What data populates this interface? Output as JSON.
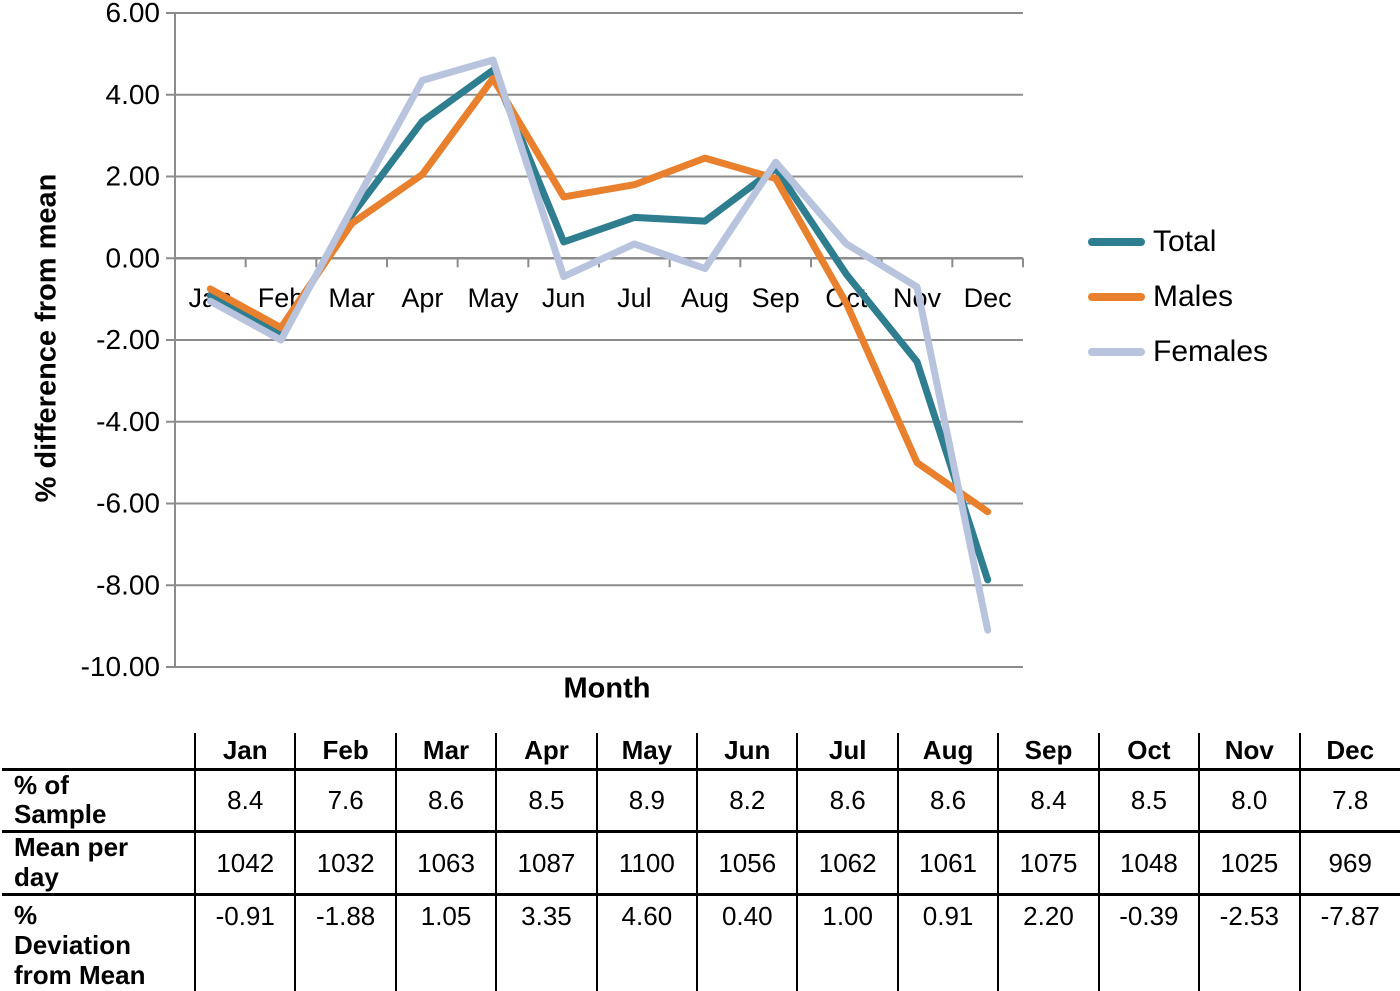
{
  "chart": {
    "y_axis_title": "% difference from mean",
    "x_axis_title": "Month",
    "y_tick_labels": [
      "6.00",
      "4.00",
      "2.00",
      "0.00",
      "-2.00",
      "-4.00",
      "-6.00",
      "-8.00",
      "-10.00"
    ]
  },
  "chart_data": {
    "type": "line",
    "title": "",
    "xlabel": "Month",
    "ylabel": "% difference from mean",
    "categories": [
      "Jan",
      "Feb",
      "Mar",
      "Apr",
      "May",
      "Jun",
      "Jul",
      "Aug",
      "Sep",
      "Oct",
      "Nov",
      "Dec"
    ],
    "series": [
      {
        "name": "Total",
        "color": "#2E7E90",
        "values": [
          -0.91,
          -1.88,
          1.05,
          3.35,
          4.6,
          0.4,
          1.0,
          0.91,
          2.2,
          -0.39,
          -2.53,
          -7.87
        ]
      },
      {
        "name": "Males",
        "color": "#E8802E",
        "values": [
          -0.75,
          -1.7,
          0.85,
          2.05,
          4.4,
          1.5,
          1.8,
          2.45,
          1.95,
          -1.1,
          -5.0,
          -6.2
        ]
      },
      {
        "name": "Females",
        "color": "#B8C3DD",
        "values": [
          -1.05,
          -2.0,
          1.2,
          4.35,
          4.85,
          -0.45,
          0.35,
          -0.25,
          2.35,
          0.35,
          -0.7,
          -9.1
        ]
      }
    ],
    "ylim": [
      -10,
      6
    ],
    "y_tick_step": 2,
    "grid": true,
    "legend_position": "right"
  },
  "table": {
    "corner_label": "",
    "column_headers": [
      "Jan",
      "Feb",
      "Mar",
      "Apr",
      "May",
      "Jun",
      "Jul",
      "Aug",
      "Sep",
      "Oct",
      "Nov",
      "Dec"
    ],
    "rows": [
      {
        "label": "% of Sample",
        "values": [
          "8.4",
          "7.6",
          "8.6",
          "8.5",
          "8.9",
          "8.2",
          "8.6",
          "8.6",
          "8.4",
          "8.5",
          "8.0",
          "7.8"
        ]
      },
      {
        "label": "Mean per day",
        "values": [
          "1042",
          "1032",
          "1063",
          "1087",
          "1100",
          "1056",
          "1062",
          "1061",
          "1075",
          "1048",
          "1025",
          "969"
        ]
      },
      {
        "label": "% Deviation from Mean",
        "values": [
          "-0.91",
          "-1.88",
          "1.05",
          "3.35",
          "4.60",
          "0.40",
          "1.00",
          "0.91",
          "2.20",
          "-0.39",
          "-2.53",
          "-7.87"
        ]
      }
    ]
  },
  "colors": {
    "gridline": "#8C8C8C",
    "axis_line": "#8C8C8C",
    "text": "#000000"
  }
}
